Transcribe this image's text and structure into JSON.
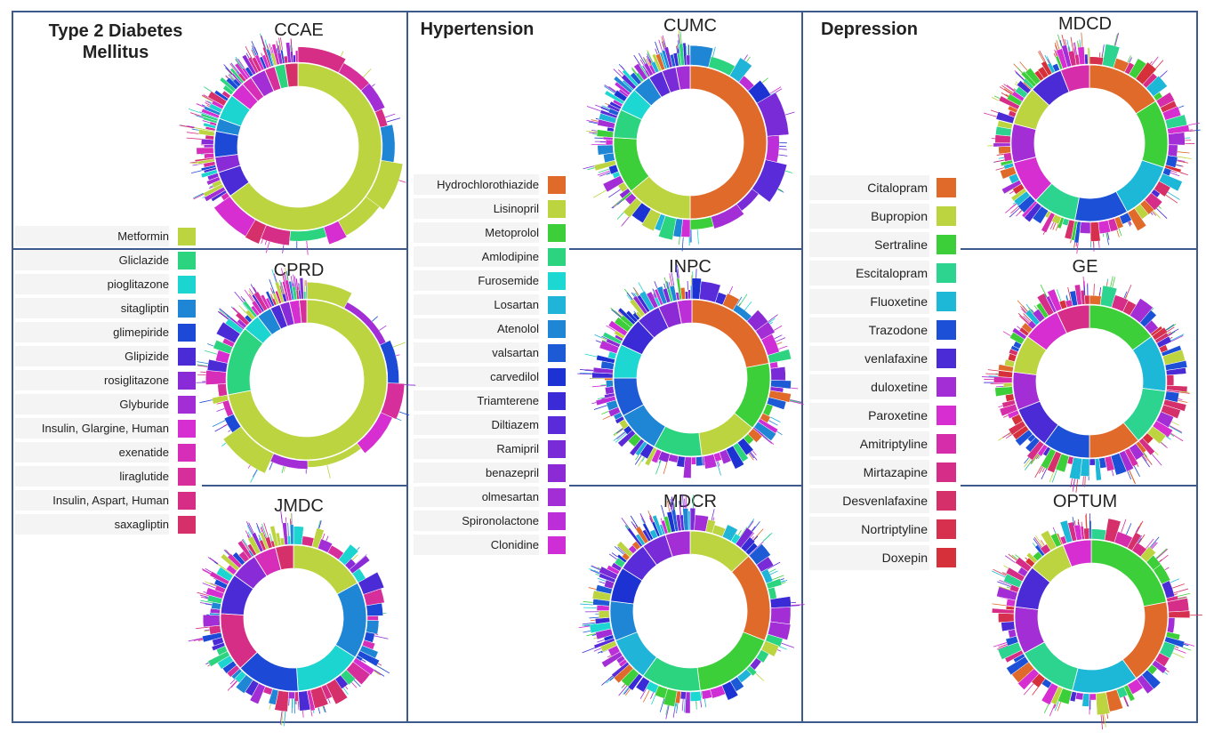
{
  "panels": [
    {
      "id": "t2dm",
      "title_lines": [
        "Type 2 Diabetes",
        "Mellitus"
      ],
      "legend": [
        {
          "label": "Metformin",
          "color": "#bcd43f"
        },
        {
          "label": "Gliclazide",
          "color": "#2dd480"
        },
        {
          "label": "pioglitazone",
          "color": "#1dd5d0"
        },
        {
          "label": "sitagliptin",
          "color": "#1f86d6"
        },
        {
          "label": "glimepiride",
          "color": "#1c4ad6"
        },
        {
          "label": "Glipizide",
          "color": "#4b2bd6"
        },
        {
          "label": "rosiglitazone",
          "color": "#8a2bd8"
        },
        {
          "label": "Glyburide",
          "color": "#a42ed6"
        },
        {
          "label": "Insulin, Glargine, Human",
          "color": "#d62ed0"
        },
        {
          "label": "exenatide",
          "color": "#d62eb8"
        },
        {
          "label": "liraglutide",
          "color": "#d62e9a"
        },
        {
          "label": "Insulin, Aspart, Human",
          "color": "#d62e86"
        },
        {
          "label": "saxagliptin",
          "color": "#d6306a"
        }
      ]
    },
    {
      "id": "htn",
      "title_lines": [
        "Hypertension"
      ],
      "legend": [
        {
          "label": "Hydrochlorothiazide",
          "color": "#df6a2a"
        },
        {
          "label": "Lisinopril",
          "color": "#bcd43f"
        },
        {
          "label": "Metoprolol",
          "color": "#3dcf3a"
        },
        {
          "label": "Amlodipine",
          "color": "#2dd480"
        },
        {
          "label": "Furosemide",
          "color": "#1dd8d2"
        },
        {
          "label": "Losartan",
          "color": "#1fb4d8"
        },
        {
          "label": "Atenolol",
          "color": "#1f86d6"
        },
        {
          "label": "valsartan",
          "color": "#1c5ad6"
        },
        {
          "label": "carvedilol",
          "color": "#1c32d2"
        },
        {
          "label": "Triamterene",
          "color": "#3a2bd6"
        },
        {
          "label": "Diltiazem",
          "color": "#5a2bd8"
        },
        {
          "label": "Ramipril",
          "color": "#7a2bd8"
        },
        {
          "label": "benazepril",
          "color": "#8c2bd6"
        },
        {
          "label": "olmesartan",
          "color": "#a42ed6"
        },
        {
          "label": "Spironolactone",
          "color": "#bb2ed8"
        },
        {
          "label": "Clonidine",
          "color": "#cf2ed6"
        }
      ]
    },
    {
      "id": "dep",
      "title_lines": [
        "Depression"
      ],
      "legend": [
        {
          "label": "Citalopram",
          "color": "#df6a2a"
        },
        {
          "label": "Bupropion",
          "color": "#bcd43f"
        },
        {
          "label": "Sertraline",
          "color": "#3dcf3a"
        },
        {
          "label": "Escitalopram",
          "color": "#2dd490"
        },
        {
          "label": "Fluoxetine",
          "color": "#1db8d8"
        },
        {
          "label": "Trazodone",
          "color": "#1c50d6"
        },
        {
          "label": "venlafaxine",
          "color": "#4b2bd6"
        },
        {
          "label": "duloxetine",
          "color": "#a42ed6"
        },
        {
          "label": "Paroxetine",
          "color": "#d62ed0"
        },
        {
          "label": "Amitriptyline",
          "color": "#d62eaa"
        },
        {
          "label": "Mirtazapine",
          "color": "#d62e88"
        },
        {
          "label": "Desvenlafaxine",
          "color": "#d6306a"
        },
        {
          "label": "Nortriptyline",
          "color": "#d6304e"
        },
        {
          "label": "Doxepin",
          "color": "#d6303a"
        }
      ]
    }
  ],
  "chart_data": [
    {
      "type": "sunburst",
      "title": "CCAE",
      "legend": "t2dm",
      "slices": [
        {
          "label": "Metformin",
          "value": 65.0
        },
        {
          "label": "Glipizide",
          "value": 5
        },
        {
          "label": "rosiglitazone",
          "value": 3
        },
        {
          "label": "glimepiride",
          "value": 5
        },
        {
          "label": "sitagliptin",
          "value": 2.5
        },
        {
          "label": "pioglitazone",
          "value": 5
        },
        {
          "label": "Insulin, Glargine, Human",
          "value": 3
        },
        {
          "label": "exenatide",
          "value": 2
        },
        {
          "label": "Glyburide",
          "value": 3
        },
        {
          "label": "liraglutide",
          "value": 2
        },
        {
          "label": "Gliclazide",
          "value": 2
        },
        {
          "label": "saxagliptin",
          "value": 2.5
        }
      ]
    },
    {
      "type": "sunburst",
      "title": "CPRD",
      "legend": "t2dm",
      "slices": [
        {
          "label": "Metformin",
          "value": 72
        },
        {
          "label": "Gliclazide",
          "value": 14
        },
        {
          "label": "pioglitazone",
          "value": 3.5
        },
        {
          "label": "sitagliptin",
          "value": 3
        },
        {
          "label": "Glipizide",
          "value": 2
        },
        {
          "label": "rosiglitazone",
          "value": 2
        },
        {
          "label": "Insulin, Glargine, Human",
          "value": 2
        },
        {
          "label": "liraglutide",
          "value": 1.5
        }
      ]
    },
    {
      "type": "sunburst",
      "title": "JMDC",
      "legend": "t2dm",
      "slices": [
        {
          "label": "Metformin",
          "value": 17
        },
        {
          "label": "sitagliptin",
          "value": 17
        },
        {
          "label": "pioglitazone",
          "value": 15
        },
        {
          "label": "glimepiride",
          "value": 14
        },
        {
          "label": "Insulin, Aspart, Human",
          "value": 13
        },
        {
          "label": "Glipizide",
          "value": 9
        },
        {
          "label": "rosiglitazone",
          "value": 6
        },
        {
          "label": "exenatide",
          "value": 5
        },
        {
          "label": "saxagliptin",
          "value": 4
        }
      ]
    },
    {
      "type": "sunburst",
      "title": "CUMC",
      "legend": "htn",
      "slices": [
        {
          "label": "Hydrochlorothiazide",
          "value": 50
        },
        {
          "label": "Lisinopril",
          "value": 14
        },
        {
          "label": "Metoprolol",
          "value": 12
        },
        {
          "label": "Amlodipine",
          "value": 6
        },
        {
          "label": "Furosemide",
          "value": 5
        },
        {
          "label": "Atenolol",
          "value": 4
        },
        {
          "label": "Diltiazem",
          "value": 3
        },
        {
          "label": "Ramipril",
          "value": 3
        },
        {
          "label": "olmesartan",
          "value": 3
        }
      ]
    },
    {
      "type": "sunburst",
      "title": "INPC",
      "legend": "htn",
      "slices": [
        {
          "label": "Hydrochlorothiazide",
          "value": 22
        },
        {
          "label": "Metoprolol",
          "value": 14
        },
        {
          "label": "Lisinopril",
          "value": 12
        },
        {
          "label": "Amlodipine",
          "value": 10
        },
        {
          "label": "Atenolol",
          "value": 9
        },
        {
          "label": "valsartan",
          "value": 8
        },
        {
          "label": "Furosemide",
          "value": 7
        },
        {
          "label": "Triamterene",
          "value": 6
        },
        {
          "label": "Diltiazem",
          "value": 5
        },
        {
          "label": "benazepril",
          "value": 4
        },
        {
          "label": "Spironolactone",
          "value": 3
        }
      ]
    },
    {
      "type": "sunburst",
      "title": "MDCR",
      "legend": "htn",
      "slices": [
        {
          "label": "Lisinopril",
          "value": 13
        },
        {
          "label": "Hydrochlorothiazide",
          "value": 18
        },
        {
          "label": "Metoprolol",
          "value": 17
        },
        {
          "label": "Amlodipine",
          "value": 12
        },
        {
          "label": "Losartan",
          "value": 9
        },
        {
          "label": "Atenolol",
          "value": 8
        },
        {
          "label": "carvedilol",
          "value": 7
        },
        {
          "label": "Diltiazem",
          "value": 6
        },
        {
          "label": "Ramipril",
          "value": 5
        },
        {
          "label": "olmesartan",
          "value": 5
        }
      ]
    },
    {
      "type": "sunburst",
      "title": "MDCD",
      "legend": "dep",
      "slices": [
        {
          "label": "Citalopram",
          "value": 16
        },
        {
          "label": "Sertraline",
          "value": 14
        },
        {
          "label": "Fluoxetine",
          "value": 12
        },
        {
          "label": "Trazodone",
          "value": 11
        },
        {
          "label": "Escitalopram",
          "value": 9
        },
        {
          "label": "Paroxetine",
          "value": 9
        },
        {
          "label": "duloxetine",
          "value": 8
        },
        {
          "label": "Bupropion",
          "value": 8
        },
        {
          "label": "venlafaxine",
          "value": 7
        },
        {
          "label": "Amitriptyline",
          "value": 6
        }
      ]
    },
    {
      "type": "sunburst",
      "title": "GE",
      "legend": "dep",
      "slices": [
        {
          "label": "Sertraline",
          "value": 15
        },
        {
          "label": "Fluoxetine",
          "value": 12
        },
        {
          "label": "Escitalopram",
          "value": 12
        },
        {
          "label": "Citalopram",
          "value": 11
        },
        {
          "label": "Trazodone",
          "value": 10
        },
        {
          "label": "venlafaxine",
          "value": 9
        },
        {
          "label": "duloxetine",
          "value": 8
        },
        {
          "label": "Bupropion",
          "value": 8
        },
        {
          "label": "Paroxetine",
          "value": 8
        },
        {
          "label": "Mirtazapine",
          "value": 7
        }
      ]
    },
    {
      "type": "sunburst",
      "title": "OPTUM",
      "legend": "dep",
      "slices": [
        {
          "label": "Sertraline",
          "value": 22
        },
        {
          "label": "Citalopram",
          "value": 18
        },
        {
          "label": "Fluoxetine",
          "value": 14
        },
        {
          "label": "Escitalopram",
          "value": 13
        },
        {
          "label": "duloxetine",
          "value": 10
        },
        {
          "label": "venlafaxine",
          "value": 9
        },
        {
          "label": "Bupropion",
          "value": 8
        },
        {
          "label": "Paroxetine",
          "value": 6
        }
      ]
    }
  ]
}
